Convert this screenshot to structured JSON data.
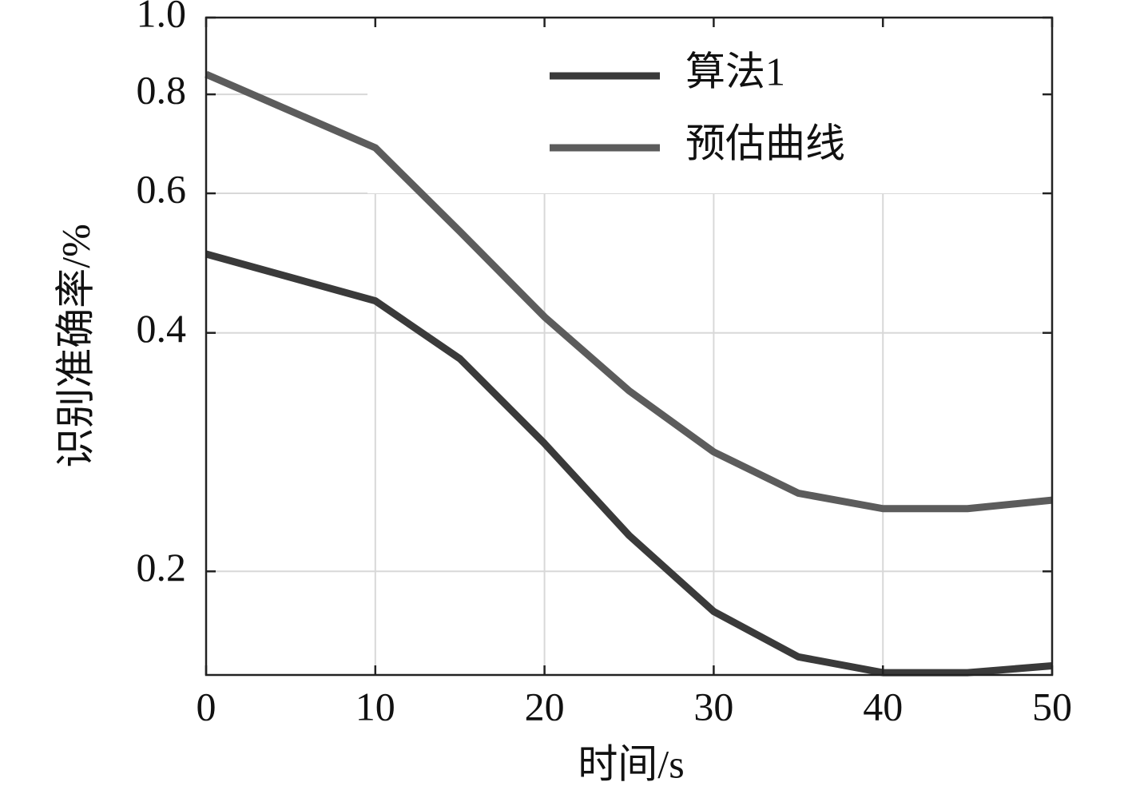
{
  "chart_data": {
    "type": "line",
    "xlabel": "时间/s",
    "ylabel": "识别准确率/%",
    "x": [
      0,
      10,
      15,
      20,
      25,
      30,
      35,
      40,
      45,
      50
    ],
    "series": [
      {
        "name": "算法1",
        "color": "#3a3a3a",
        "values": [
          0.503,
          0.439,
          0.371,
          0.29,
          0.222,
          0.178,
          0.156,
          0.149,
          0.149,
          0.152
        ]
      },
      {
        "name": "预估曲线",
        "color": "#5c5c5c",
        "values": [
          0.848,
          0.685,
          0.537,
          0.419,
          0.338,
          0.283,
          0.251,
          0.24,
          0.24,
          0.246
        ]
      }
    ],
    "xlim": [
      0,
      50
    ],
    "xticks": [
      0,
      10,
      20,
      30,
      40,
      50
    ],
    "ylim": [
      0.148,
      1
    ],
    "yticks": [
      0.2,
      0.4,
      0.6,
      0.8,
      {
        "value": 1,
        "label": "1.0"
      }
    ],
    "yscale": "log",
    "grid": true,
    "legend": "upper center"
  }
}
